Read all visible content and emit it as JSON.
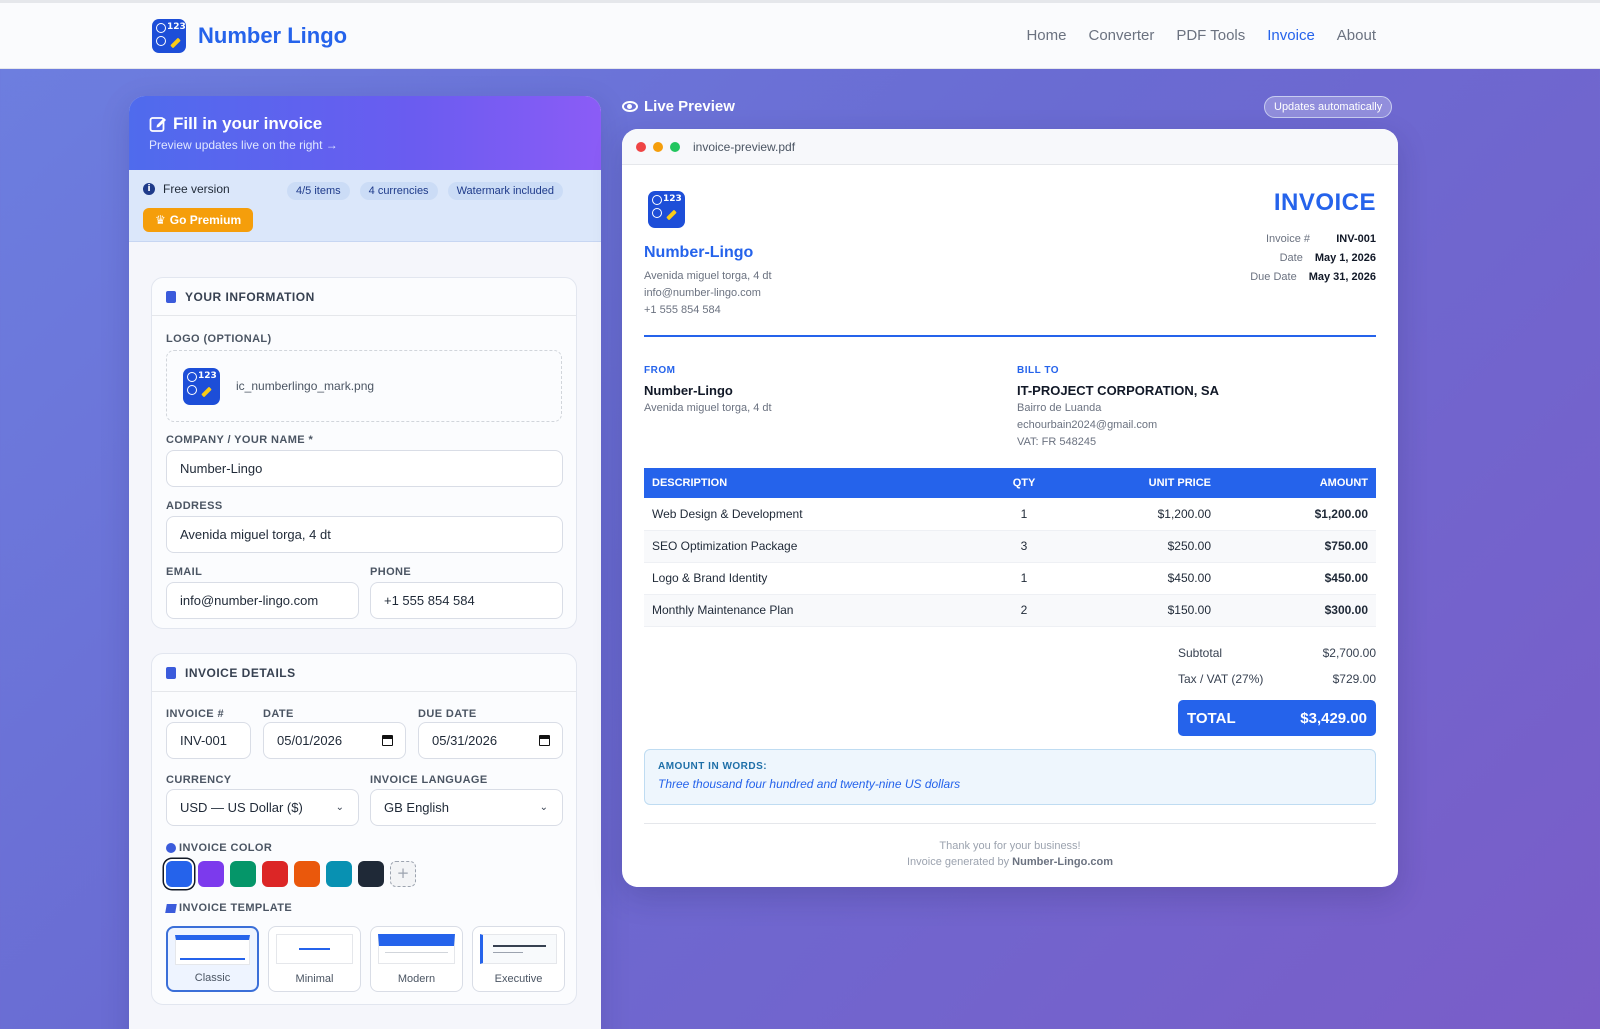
{
  "app": {
    "name": "Number Lingo"
  },
  "nav": {
    "home": "Home",
    "converter": "Converter",
    "pdf_tools": "PDF Tools",
    "invoice": "Invoice",
    "about": "About"
  },
  "form": {
    "title": "Fill in your invoice",
    "subtitle": "Preview updates live on the right →",
    "plan": {
      "label": "Free version",
      "items": "4/5 items",
      "currencies": "4 currencies",
      "watermark": "Watermark included",
      "premium_button": "Go Premium"
    },
    "your_info": {
      "heading": "YOUR INFORMATION",
      "logo_label": "LOGO (OPTIONAL)",
      "logo_file": "ic_numberlingo_mark.png",
      "company_label": "COMPANY / YOUR NAME *",
      "company_value": "Number-Lingo",
      "address_label": "ADDRESS",
      "address_value": "Avenida miguel torga, 4 dt",
      "email_label": "EMAIL",
      "email_value": "info@number-lingo.com",
      "phone_label": "PHONE",
      "phone_value": "+1 555 854 584"
    },
    "details": {
      "heading": "INVOICE DETAILS",
      "invoice_no_label": "INVOICE #",
      "invoice_no_value": "INV-001",
      "date_label": "DATE",
      "date_value": "05/01/2026",
      "due_label": "DUE DATE",
      "due_value": "05/31/2026",
      "currency_label": "CURRENCY",
      "currency_value": "USD — US Dollar ($)",
      "language_label": "INVOICE LANGUAGE",
      "language_value": "GB English",
      "color_label": "INVOICE COLOR",
      "colors": [
        "#2563eb",
        "#7c3aed",
        "#059669",
        "#dc2626",
        "#ea580c",
        "#0891b2",
        "#1f2937"
      ],
      "template_label": "INVOICE TEMPLATE",
      "templates": [
        "Classic",
        "Minimal",
        "Modern",
        "Executive"
      ]
    }
  },
  "preview": {
    "title": "Live Preview",
    "badge": "Updates automatically",
    "file_name": "invoice-preview.pdf",
    "company": "Number-Lingo",
    "address": "Avenida miguel torga, 4 dt",
    "email": "info@number-lingo.com",
    "phone": "+1 555 854 584",
    "heading": "INVOICE",
    "meta": {
      "invoice_label": "Invoice #",
      "invoice_value": "INV-001",
      "date_label": "Date",
      "date_value": "May 1, 2026",
      "due_label": "Due Date",
      "due_value": "May 31, 2026"
    },
    "from": {
      "label": "FROM",
      "name": "Number-Lingo",
      "address": "Avenida miguel torga, 4 dt"
    },
    "bill_to": {
      "label": "BILL TO",
      "name": "IT-PROJECT CORPORATION, SA",
      "line1": "Bairro de Luanda",
      "line2": "echourbain2024@gmail.com",
      "line3": "VAT: FR 548245"
    },
    "table": {
      "headers": [
        "DESCRIPTION",
        "QTY",
        "UNIT PRICE",
        "AMOUNT"
      ],
      "rows": [
        [
          "Web Design & Development",
          "1",
          "$1,200.00",
          "$1,200.00"
        ],
        [
          "SEO Optimization Package",
          "3",
          "$250.00",
          "$750.00"
        ],
        [
          "Logo & Brand Identity",
          "1",
          "$450.00",
          "$450.00"
        ],
        [
          "Monthly Maintenance Plan",
          "2",
          "$150.00",
          "$300.00"
        ]
      ]
    },
    "subtotal_label": "Subtotal",
    "subtotal_value": "$2,700.00",
    "tax_label": "Tax / VAT (27%)",
    "tax_value": "$729.00",
    "total_label": "TOTAL",
    "total_value": "$3,429.00",
    "words_label": "AMOUNT IN WORDS:",
    "words_value": "Three thousand four hundred and twenty-nine US dollars",
    "thanks": "Thank you for your business!",
    "generated_prefix": "Invoice generated by ",
    "generated_site": "Number-Lingo.com"
  }
}
